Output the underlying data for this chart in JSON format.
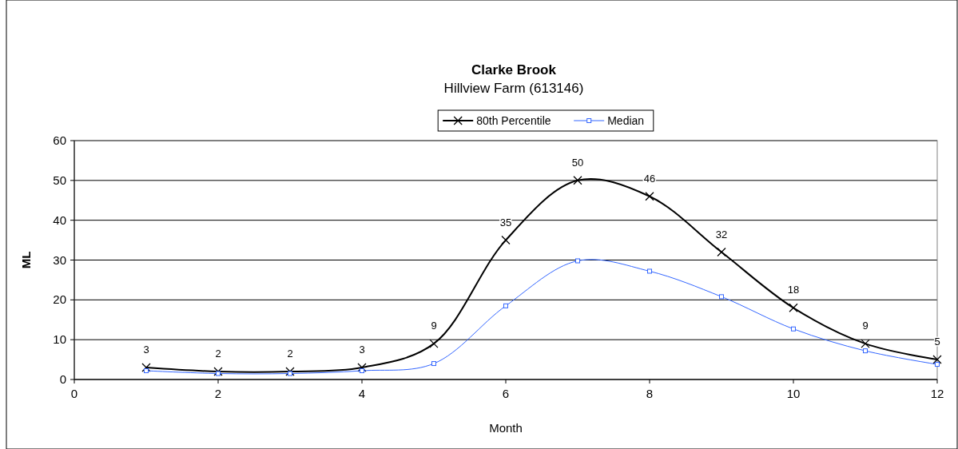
{
  "chart_data": {
    "type": "line",
    "title": "Clarke Brook",
    "subtitle": "Hillview Farm (613146)",
    "xlabel": "Month",
    "ylabel": "ML",
    "xlim": [
      0,
      12
    ],
    "xticks": [
      0,
      2,
      4,
      6,
      8,
      10,
      12
    ],
    "ylim": [
      0,
      60
    ],
    "yticks": [
      0,
      10,
      20,
      30,
      40,
      50,
      60
    ],
    "grid": "y",
    "legend": "top",
    "x": [
      1,
      2,
      3,
      4,
      5,
      6,
      7,
      8,
      9,
      10,
      11,
      12
    ],
    "series": [
      {
        "name": "80th Percentile",
        "color": "#000000",
        "marker": "cross",
        "values": [
          3,
          2,
          2,
          3,
          9,
          35,
          50,
          46,
          32,
          18,
          9,
          5
        ],
        "value_labels": [
          "3",
          "2",
          "2",
          "3",
          "9",
          "35",
          "50",
          "46",
          "32",
          "18",
          "9",
          "5"
        ]
      },
      {
        "name": "Median",
        "color": "#3366ff",
        "marker": "square",
        "values": [
          2.2,
          1.5,
          1.5,
          2.2,
          4,
          18.5,
          29.8,
          27.2,
          20.8,
          12.7,
          7.2,
          3.8
        ]
      }
    ]
  }
}
